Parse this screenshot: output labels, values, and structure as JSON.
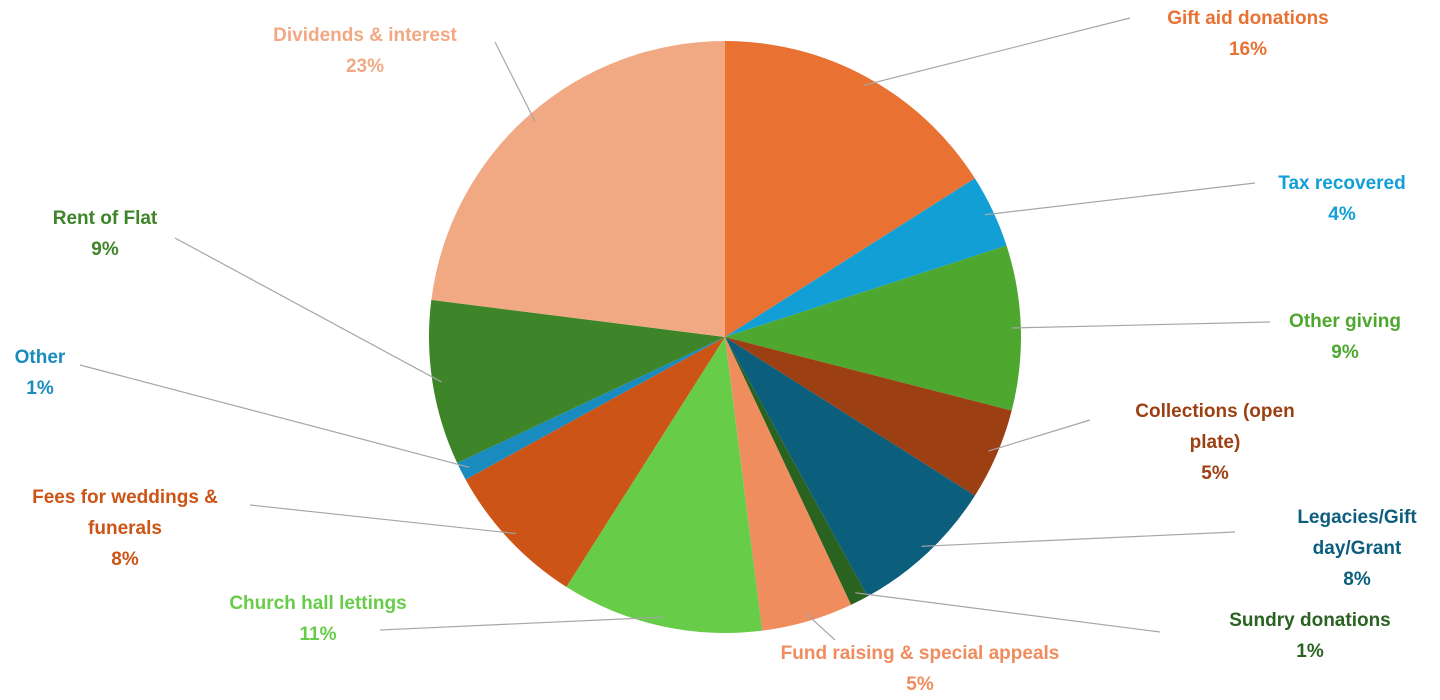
{
  "chart_data": {
    "type": "pie",
    "categories": [
      "Gift aid donations",
      "Tax recovered",
      "Other giving",
      "Collections (open plate)",
      "Legacies/Gift day/Grant",
      "Sundry donations",
      "Fund raising  & special appeals",
      "Church hall lettings",
      "Fees for weddings & funerals",
      "Other",
      "Rent of Flat",
      "Dividends & interest"
    ],
    "values": [
      16,
      4,
      9,
      5,
      8,
      1,
      5,
      11,
      8,
      1,
      9,
      23
    ],
    "value_labels": [
      "16%",
      "4%",
      "9%",
      "5%",
      "8%",
      "1%",
      "5%",
      "11%",
      "8%",
      "1%",
      "9%",
      "23%"
    ],
    "colors": [
      "#E97132",
      "#129FD6",
      "#4EA72E",
      "#9C3F12",
      "#0C5E7D",
      "#2A6220",
      "#EF8D5E",
      "#67CC47",
      "#CC5416",
      "#1A8BBE",
      "#3D8528",
      "#F1A983"
    ]
  }
}
